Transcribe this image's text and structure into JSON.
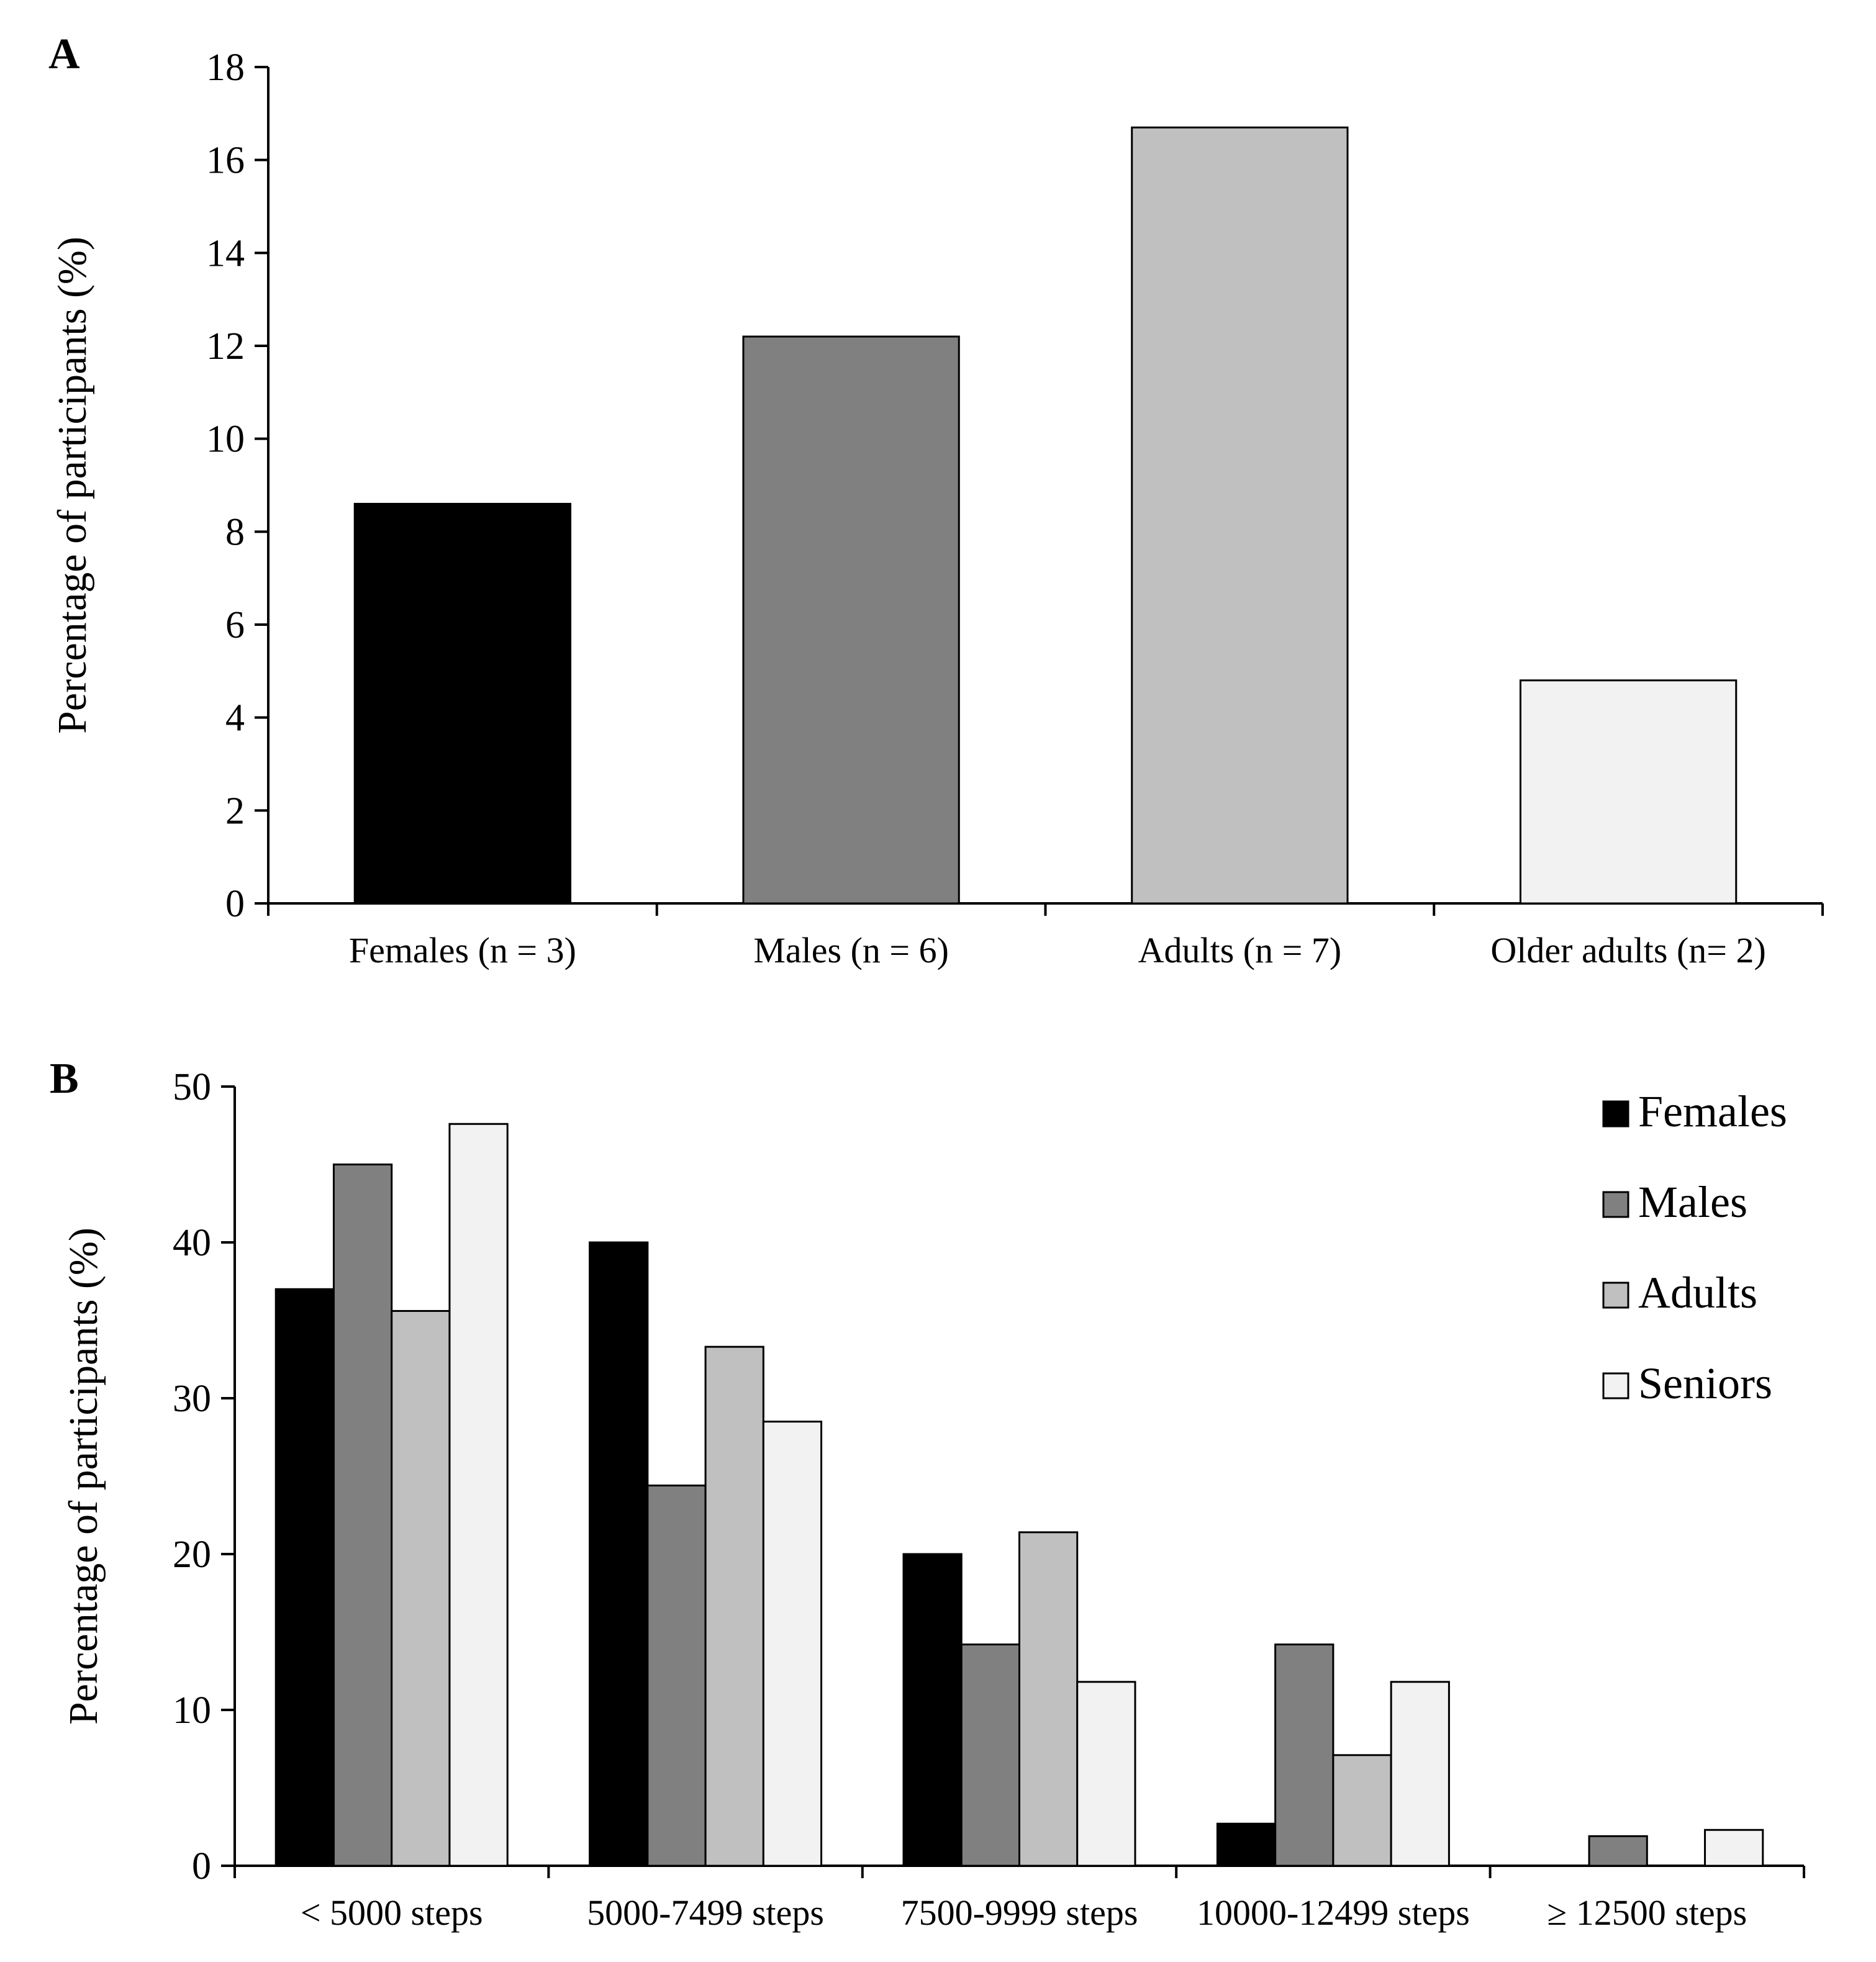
{
  "chart_data": [
    {
      "type": "bar",
      "panel_label": "A",
      "categories": [
        "Females (n = 3)",
        "Males (n = 6)",
        "Adults (n = 7)",
        "Older adults (n= 2)"
      ],
      "values": [
        8.6,
        12.2,
        16.7,
        4.8
      ],
      "colors": [
        "#000000",
        "#808080",
        "#c0c0c0",
        "#f2f2f2"
      ],
      "xlabel": "",
      "ylabel": "Percentage of participants (%)",
      "ylim": [
        0,
        18
      ],
      "yticks": [
        0,
        2,
        4,
        6,
        8,
        10,
        12,
        14,
        16,
        18
      ],
      "grid": false,
      "legend": "none"
    },
    {
      "type": "bar",
      "panel_label": "B",
      "categories": [
        "< 5000 steps",
        "5000-7499 steps",
        "7500-9999 steps",
        "10000-12499 steps",
        "≥ 12500 steps"
      ],
      "series": [
        {
          "name": "Females",
          "color": "#000000",
          "values": [
            37,
            40,
            20,
            2.7,
            0
          ]
        },
        {
          "name": "Males",
          "color": "#808080",
          "values": [
            45,
            24.4,
            14.2,
            14.2,
            1.9
          ]
        },
        {
          "name": "Adults",
          "color": "#c0c0c0",
          "values": [
            35.6,
            33.3,
            21.4,
            7.1,
            0
          ]
        },
        {
          "name": "Seniors",
          "color": "#f2f2f2",
          "values": [
            47.6,
            28.5,
            11.8,
            11.8,
            2.3
          ]
        }
      ],
      "xlabel": "",
      "ylabel": "Percentage of participants (%)",
      "ylim": [
        0,
        50
      ],
      "yticks": [
        0,
        10,
        20,
        30,
        40,
        50
      ],
      "grid": false,
      "legend": "top-right"
    }
  ]
}
